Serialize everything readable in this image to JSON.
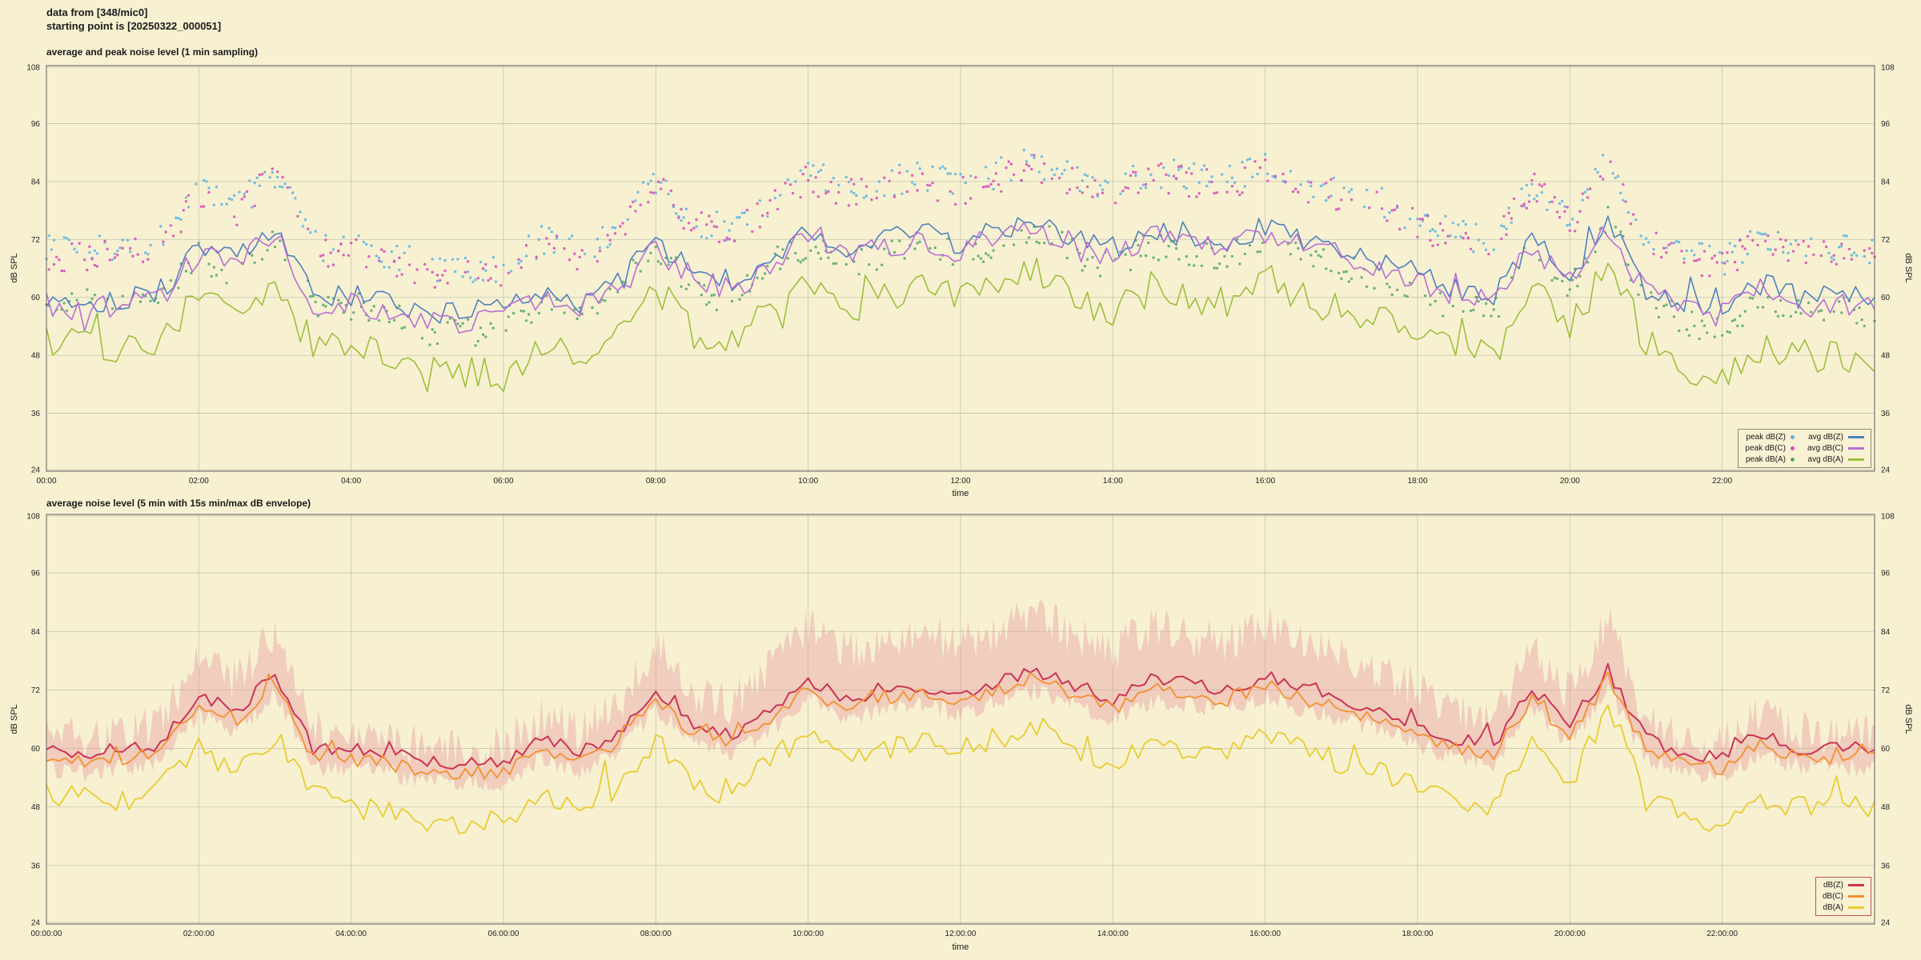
{
  "header": {
    "line1": "data from [348/mic0]",
    "line2": "starting point is [20250322_000051]"
  },
  "colors": {
    "background": "#f7f1d2",
    "grid": "#a0a090",
    "border": "#606060",
    "envelope": "#e89aa0"
  },
  "chart_data": [
    {
      "type": "line+scatter",
      "title": "average and peak noise level (1 min sampling)",
      "xlabel": "time",
      "ylabel": "dB SPL",
      "ylabel_right": "dB SPL",
      "xlim": [
        0,
        24
      ],
      "ylim": [
        24,
        108
      ],
      "yticks": [
        24,
        36,
        48,
        60,
        72,
        84,
        96,
        108
      ],
      "xticks": [
        0,
        2,
        4,
        6,
        8,
        10,
        12,
        14,
        16,
        18,
        20,
        22
      ],
      "xtick_labels": [
        "00:00",
        "02:00",
        "04:00",
        "06:00",
        "08:00",
        "10:00",
        "12:00",
        "14:00",
        "16:00",
        "18:00",
        "20:00",
        "22:00"
      ],
      "x_start": 0,
      "x_step": 0.5,
      "series": [
        {
          "name": "peak dB(Z)",
          "type": "scatter",
          "color": "#5ab4e0",
          "jitter": 3.2,
          "values": [
            70,
            69,
            71,
            72,
            82,
            79,
            86,
            71,
            70,
            69,
            66,
            66,
            66,
            72,
            69,
            74,
            84,
            76,
            74,
            80,
            86,
            82,
            84,
            85,
            83,
            86,
            88,
            85,
            82,
            86,
            85,
            84,
            87,
            84,
            82,
            80,
            76,
            73,
            72,
            84,
            76,
            88,
            73,
            69,
            67,
            73,
            70,
            70,
            70
          ]
        },
        {
          "name": "peak dB(C)",
          "type": "scatter",
          "color": "#d948b8",
          "jitter": 3.2,
          "values": [
            69,
            68,
            70,
            71,
            81,
            78,
            85,
            70,
            69,
            68,
            65,
            65,
            65,
            71,
            68,
            73,
            83,
            75,
            73,
            79,
            85,
            81,
            83,
            84,
            82,
            85,
            87,
            84,
            81,
            85,
            84,
            83,
            86,
            83,
            81,
            79,
            75,
            72,
            71,
            83,
            75,
            87,
            72,
            68,
            66,
            72,
            69,
            69,
            69
          ]
        },
        {
          "name": "peak dB(A)",
          "type": "scatter",
          "color": "#55a868",
          "jitter": 3.0,
          "values": [
            60,
            59,
            58,
            61,
            69,
            64,
            72,
            59,
            58,
            57,
            53,
            53,
            53,
            59,
            56,
            61,
            71,
            61,
            59,
            67,
            71,
            67,
            69,
            71,
            69,
            71,
            74,
            69,
            66,
            71,
            69,
            68,
            73,
            69,
            66,
            64,
            61,
            58,
            57,
            71,
            62,
            77,
            59,
            55,
            53,
            59,
            57,
            57,
            57
          ]
        },
        {
          "name": "avg dB(Z)",
          "type": "line",
          "color": "#4f81bd",
          "width": 1.6,
          "jitter": 2.6,
          "values": [
            60,
            59,
            60,
            61,
            71,
            68,
            75,
            60,
            60,
            59,
            57,
            57,
            57,
            62,
            59,
            63,
            72,
            65,
            63,
            68,
            74,
            70,
            72,
            73,
            71,
            74,
            76,
            73,
            70,
            74,
            73,
            72,
            75,
            72,
            70,
            68,
            65,
            62,
            61,
            72,
            65,
            76,
            62,
            59,
            58,
            63,
            60,
            60,
            60
          ]
        },
        {
          "name": "avg dB(C)",
          "type": "line",
          "color": "#b86fd0",
          "width": 1.6,
          "jitter": 2.6,
          "values": [
            58.5,
            57.5,
            58.5,
            59.5,
            69.5,
            66.5,
            73.5,
            58.5,
            58.5,
            57.5,
            55.5,
            55.5,
            55.5,
            60.5,
            57.5,
            61.5,
            70.5,
            63.5,
            61.5,
            66.5,
            72.5,
            68.5,
            70.5,
            71.5,
            69.5,
            72.5,
            74.5,
            71.5,
            68.5,
            72.5,
            71.5,
            70.5,
            73.5,
            70.5,
            68.5,
            66.5,
            63.5,
            60.5,
            59.5,
            70.5,
            63.5,
            74.5,
            60.5,
            57.5,
            56.5,
            61.5,
            58.5,
            58.5,
            58.5
          ]
        },
        {
          "name": "avg dB(A)",
          "type": "line",
          "color": "#9dbf3b",
          "width": 1.6,
          "jitter": 3.6,
          "values": [
            51,
            50,
            49,
            52,
            60,
            55,
            63,
            50,
            49,
            48,
            44,
            44,
            44,
            50,
            47,
            52,
            62,
            52,
            50,
            58,
            62,
            58,
            60,
            62,
            60,
            62,
            65,
            60,
            57,
            62,
            60,
            59,
            64,
            60,
            57,
            55,
            52,
            49,
            48,
            62,
            53,
            68,
            50,
            46,
            44,
            50,
            48,
            48,
            48
          ]
        }
      ],
      "legend": {
        "columns": [
          [
            {
              "label": "peak dB(Z)",
              "color": "#5ab4e0",
              "marker": "dot"
            },
            {
              "label": "peak dB(C)",
              "color": "#d948b8",
              "marker": "dot"
            },
            {
              "label": "peak dB(A)",
              "color": "#55a868",
              "marker": "dot"
            }
          ],
          [
            {
              "label": "avg dB(Z)",
              "color": "#4f81bd",
              "marker": "line"
            },
            {
              "label": "avg dB(C)",
              "color": "#b86fd0",
              "marker": "line"
            },
            {
              "label": "avg dB(A)",
              "color": "#9dbf3b",
              "marker": "line"
            }
          ]
        ]
      }
    },
    {
      "type": "line+area",
      "title": "average noise level (5 min with 15s min/max dB envelope)",
      "xlabel": "time",
      "ylabel": "dB SPL",
      "ylabel_right": "dB SPL",
      "xlim": [
        0,
        24
      ],
      "ylim": [
        24,
        108
      ],
      "yticks": [
        24,
        36,
        48,
        60,
        72,
        84,
        96,
        108
      ],
      "xticks": [
        0,
        2,
        4,
        6,
        8,
        10,
        12,
        14,
        16,
        18,
        20,
        22
      ],
      "xtick_labels": [
        "00:00:00",
        "02:00:00",
        "04:00:00",
        "06:00:00",
        "08:00:00",
        "10:00:00",
        "12:00:00",
        "14:00:00",
        "16:00:00",
        "18:00:00",
        "20:00:00",
        "22:00:00"
      ],
      "x_start": 0,
      "x_step": 0.5,
      "band": {
        "name": "15s min/max dB envelope",
        "color": "#e89aa0",
        "opacity": 0.42,
        "jitter_upper": 4.5,
        "jitter_lower": 2.0,
        "upper": [
          63,
          62,
          63,
          65,
          79,
          74,
          84,
          64,
          63,
          62,
          60,
          60,
          60,
          67,
          63,
          69,
          81,
          71,
          69,
          77,
          85,
          80,
          82,
          84,
          81,
          85,
          87,
          83,
          80,
          85,
          83,
          82,
          86,
          82,
          79,
          76,
          72,
          67,
          65,
          81,
          71,
          86,
          66,
          62,
          61,
          68,
          63,
          63,
          63
        ],
        "lower": [
          56,
          55,
          56,
          57,
          67,
          64,
          71,
          56,
          56,
          55,
          53,
          53,
          53,
          58,
          55,
          59,
          68,
          61,
          59,
          64,
          70,
          66,
          68,
          69,
          67,
          70,
          72,
          69,
          66,
          70,
          69,
          68,
          71,
          68,
          66,
          64,
          61,
          58,
          57,
          68,
          61,
          72,
          58,
          55,
          54,
          59,
          56,
          56,
          56
        ]
      },
      "series": [
        {
          "name": "dB(Z)",
          "type": "line",
          "color": "#cc3355",
          "width": 2.0,
          "jitter": 1.4,
          "values": [
            60,
            59,
            60,
            61,
            71,
            68,
            75,
            60,
            60,
            59,
            57,
            57,
            57,
            62,
            59,
            63,
            72,
            65,
            63,
            68,
            74,
            70,
            72,
            73,
            71,
            74,
            76,
            73,
            70,
            74,
            73,
            72,
            75,
            72,
            70,
            68,
            65,
            62,
            61,
            72,
            65,
            76,
            62,
            59,
            58,
            63,
            60,
            60,
            60
          ]
        },
        {
          "name": "dB(C)",
          "type": "line",
          "color": "#f49030",
          "width": 1.8,
          "jitter": 1.4,
          "values": [
            58,
            57,
            58,
            59,
            69,
            66,
            73,
            58,
            58,
            57,
            55,
            55,
            55,
            60,
            57,
            61,
            70,
            63,
            61,
            66,
            72,
            68,
            70,
            71,
            69,
            72,
            74,
            71,
            68,
            72,
            71,
            70,
            73,
            70,
            68,
            66,
            63,
            60,
            59,
            70,
            63,
            74,
            60,
            57,
            56,
            61,
            58,
            58,
            58
          ]
        },
        {
          "name": "dB(A)",
          "type": "line",
          "color": "#e8cc30",
          "width": 1.8,
          "jitter": 2.4,
          "values": [
            51,
            50,
            49,
            52,
            60,
            55,
            63,
            50,
            49,
            48,
            44,
            44,
            44,
            50,
            47,
            52,
            62,
            52,
            50,
            58,
            62,
            58,
            60,
            62,
            60,
            62,
            65,
            60,
            57,
            62,
            60,
            59,
            64,
            60,
            57,
            55,
            52,
            49,
            48,
            62,
            53,
            68,
            50,
            46,
            44,
            50,
            48,
            48,
            48
          ]
        }
      ],
      "legend": {
        "columns": [
          [
            {
              "label": "dB(Z)",
              "color": "#cc3355",
              "marker": "line"
            },
            {
              "label": "dB(C)",
              "color": "#f49030",
              "marker": "line"
            },
            {
              "label": "dB(A)",
              "color": "#e8cc30",
              "marker": "line"
            }
          ]
        ]
      }
    }
  ]
}
